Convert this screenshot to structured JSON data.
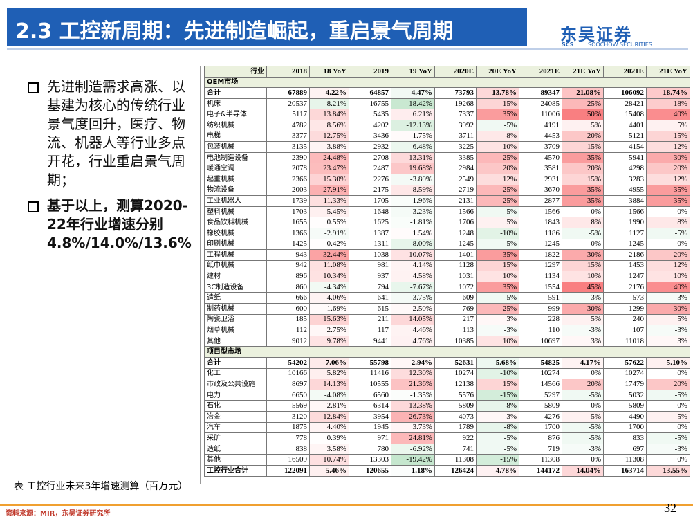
{
  "header": {
    "title": "2.3 工控新周期：先进制造崛起，重启景气周期",
    "logo": "东吴证券",
    "logo_sub": "SOOCHOW SECURITIES",
    "logo_mark": "SCS"
  },
  "bullets": [
    "先进制造需求高涨、以基建为核心的传统行业景气度回升，医疗、物流、机器人等行业多点开花，行业重启景气周期；",
    "基于以上，测算2020-22年行业增速分别4.8%/14.0%/13.6%"
  ],
  "caption": "表 工控行业未来3年增速测算（百万元）",
  "source": "资料来源：MIR，东吴证券研究所",
  "page": "32",
  "table": {
    "columns": [
      "行业",
      "2018",
      "18 YoY",
      "2019",
      "19 YoY",
      "2020E",
      "20E YoY",
      "2021E",
      "21E YoY",
      "2021E",
      "21E YoY"
    ],
    "rows": [
      [
        "OEM市场"
      ],
      [
        "合计",
        "67889",
        "4.22%",
        "64857",
        "-4.47%",
        "73793",
        "13.78%",
        "89347",
        "21.08%",
        "106092",
        "18.74%"
      ],
      [
        "机床",
        "20537",
        "-8.21%",
        "16755",
        "-18.42%",
        "19268",
        "15%",
        "24085",
        "25%",
        "28421",
        "18%"
      ],
      [
        "电子&半导体",
        "5117",
        "13.84%",
        "5435",
        "6.21%",
        "7337",
        "35%",
        "11006",
        "50%",
        "15408",
        "40%"
      ],
      [
        "纺织机械",
        "4782",
        "8.56%",
        "4202",
        "-12.13%",
        "3992",
        "-5%",
        "4191",
        "5%",
        "4401",
        "5%"
      ],
      [
        "电梯",
        "3377",
        "12.75%",
        "3436",
        "1.75%",
        "3711",
        "8%",
        "4453",
        "20%",
        "5121",
        "15%"
      ],
      [
        "包装机械",
        "3135",
        "3.88%",
        "2932",
        "-6.48%",
        "3225",
        "10%",
        "3709",
        "15%",
        "4154",
        "12%"
      ],
      [
        "电池制造设备",
        "2390",
        "24.48%",
        "2708",
        "13.31%",
        "3385",
        "25%",
        "4570",
        "35%",
        "5941",
        "30%"
      ],
      [
        "暖通空调",
        "2078",
        "23.47%",
        "2487",
        "19.68%",
        "2984",
        "20%",
        "3581",
        "20%",
        "4298",
        "20%"
      ],
      [
        "起重机械",
        "2366",
        "15.30%",
        "2276",
        "-3.80%",
        "2549",
        "12%",
        "2931",
        "15%",
        "3283",
        "12%"
      ],
      [
        "物流设备",
        "2003",
        "27.91%",
        "2175",
        "8.59%",
        "2719",
        "25%",
        "3670",
        "35%",
        "4955",
        "35%"
      ],
      [
        "工业机器人",
        "1739",
        "11.33%",
        "1705",
        "-1.96%",
        "2131",
        "25%",
        "2877",
        "35%",
        "3884",
        "35%"
      ],
      [
        "塑料机械",
        "1703",
        "5.45%",
        "1648",
        "-3.23%",
        "1566",
        "-5%",
        "1566",
        "0%",
        "1566",
        "0%"
      ],
      [
        "食品饮料机械",
        "1655",
        "0.55%",
        "1625",
        "-1.81%",
        "1706",
        "5%",
        "1843",
        "8%",
        "1990",
        "8%"
      ],
      [
        "橡胶机械",
        "1366",
        "-2.91%",
        "1387",
        "1.54%",
        "1248",
        "-10%",
        "1186",
        "-5%",
        "1127",
        "-5%"
      ],
      [
        "印刷机械",
        "1425",
        "0.42%",
        "1311",
        "-8.00%",
        "1245",
        "-5%",
        "1245",
        "0%",
        "1245",
        "0%"
      ],
      [
        "工程机械",
        "943",
        "32.44%",
        "1038",
        "10.07%",
        "1401",
        "35%",
        "1822",
        "30%",
        "2186",
        "20%"
      ],
      [
        "纸巾机械",
        "942",
        "11.08%",
        "981",
        "4.14%",
        "1128",
        "15%",
        "1297",
        "15%",
        "1453",
        "12%"
      ],
      [
        "建材",
        "896",
        "10.34%",
        "937",
        "4.58%",
        "1031",
        "10%",
        "1134",
        "10%",
        "1247",
        "10%"
      ],
      [
        "3C制造设备",
        "860",
        "-4.34%",
        "794",
        "-7.67%",
        "1072",
        "35%",
        "1554",
        "45%",
        "2176",
        "40%"
      ],
      [
        "造纸",
        "666",
        "4.06%",
        "641",
        "-3.75%",
        "609",
        "-5%",
        "591",
        "-3%",
        "573",
        "-3%"
      ],
      [
        "制药机械",
        "600",
        "1.69%",
        "615",
        "2.50%",
        "769",
        "25%",
        "999",
        "30%",
        "1299",
        "30%"
      ],
      [
        "陶瓷卫浴",
        "185",
        "15.63%",
        "211",
        "14.05%",
        "217",
        "3%",
        "228",
        "5%",
        "240",
        "5%"
      ],
      [
        "烟草机械",
        "112",
        "2.75%",
        "117",
        "4.46%",
        "113",
        "-3%",
        "110",
        "-3%",
        "107",
        "-3%"
      ],
      [
        "其他",
        "9012",
        "9.78%",
        "9441",
        "4.76%",
        "10385",
        "10%",
        "10697",
        "3%",
        "11018",
        "3%"
      ],
      [
        "项目型市场"
      ],
      [
        "合计",
        "54202",
        "7.06%",
        "55798",
        "2.94%",
        "52631",
        "-5.68%",
        "54825",
        "4.17%",
        "57622",
        "5.10%"
      ],
      [
        "化工",
        "10166",
        "5.82%",
        "11416",
        "12.30%",
        "10274",
        "-10%",
        "10274",
        "0%",
        "10274",
        "0%"
      ],
      [
        "市政及公共设施",
        "8697",
        "14.13%",
        "10555",
        "21.36%",
        "12138",
        "15%",
        "14566",
        "20%",
        "17479",
        "20%"
      ],
      [
        "电力",
        "6650",
        "-4.08%",
        "6560",
        "-1.35%",
        "5576",
        "-15%",
        "5297",
        "-5%",
        "5032",
        "-5%"
      ],
      [
        "石化",
        "5569",
        "2.81%",
        "6314",
        "13.38%",
        "5809",
        "-8%",
        "5809",
        "0%",
        "5809",
        "0%"
      ],
      [
        "冶金",
        "3120",
        "12.84%",
        "3954",
        "26.73%",
        "4073",
        "3%",
        "4276",
        "5%",
        "4490",
        "5%"
      ],
      [
        "汽车",
        "1875",
        "4.40%",
        "1945",
        "3.73%",
        "1789",
        "-8%",
        "1700",
        "-5%",
        "1700",
        "0%"
      ],
      [
        "采矿",
        "778",
        "0.39%",
        "971",
        "24.81%",
        "922",
        "-5%",
        "876",
        "-5%",
        "833",
        "-5%"
      ],
      [
        "造纸",
        "838",
        "3.58%",
        "780",
        "-6.92%",
        "741",
        "-5%",
        "719",
        "-3%",
        "697",
        "-3%"
      ],
      [
        "其他",
        "16509",
        "10.74%",
        "13303",
        "-19.42%",
        "11308",
        "-15%",
        "11308",
        "0%",
        "11308",
        "0%"
      ],
      [
        "工控行业合计",
        "122091",
        "5.46%",
        "120655",
        "-1.18%",
        "126424",
        "4.78%",
        "144172",
        "14.04%",
        "163714",
        "13.55%"
      ]
    ]
  }
}
